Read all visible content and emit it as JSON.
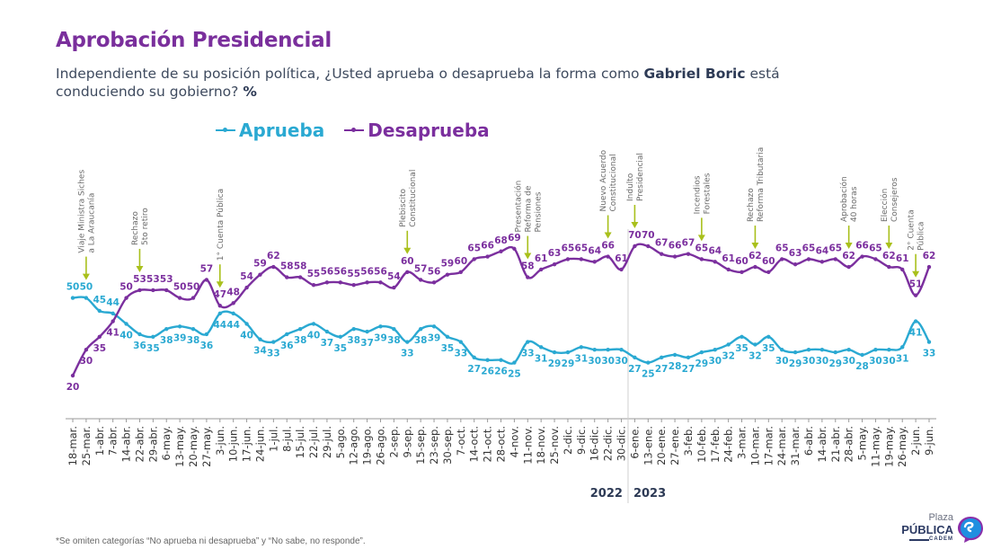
{
  "header": {
    "title": "Aprobación Presidencial",
    "subtitle_pre": "Independiente de su posición política, ¿Usted aprueba o desaprueba la forma como ",
    "subtitle_bold": "Gabriel Boric",
    "subtitle_post": " está conduciendo su gobierno? ",
    "subtitle_unit": "%"
  },
  "footnote": "*Se omiten categorías “No aprueba ni desaprueba” y “No sabe, no responde”.",
  "logo": {
    "line1": "Plaza",
    "line2": "PÚBLICA",
    "line3": "CADEM"
  },
  "colors": {
    "aprueba": "#2aa9d2",
    "desaprueba": "#7b2f9e",
    "annotation_arrow": "#a9c01c",
    "annotation_text": "#6b6b6b"
  },
  "chart_data": {
    "type": "line",
    "title": "Aprobación Presidencial",
    "xlabel": "",
    "ylabel": "%",
    "ylim": [
      15,
      75
    ],
    "grid": false,
    "legend_position": "top-left",
    "year_labels": [
      {
        "label": "2022",
        "before_index": 42
      },
      {
        "label": "2023",
        "from_index": 42
      }
    ],
    "x": [
      "18-mar.",
      "25-mar.",
      "1-abr.",
      "7-abr.",
      "14-abr.",
      "22-abr.",
      "29-abr.",
      "6-may.",
      "13-may.",
      "20-may.",
      "27-may.",
      "3-jun.",
      "10-jun.",
      "17-jun.",
      "24-jun.",
      "1-jul.",
      "8-jul.",
      "15-jul.",
      "22-jul.",
      "29-jul.",
      "5-ago.",
      "12-ago.",
      "19-ago.",
      "26-ago.",
      "2-sep.",
      "9-sep.",
      "15-sep.",
      "23-sep.",
      "30-sep.",
      "7-oct.",
      "14-oct.",
      "21-oct.",
      "28-oct.",
      "4-nov.",
      "11-nov.",
      "18-nov.",
      "25-nov.",
      "2-dic.",
      "9-dic.",
      "16-dic.",
      "22-dic.",
      "30-dic.",
      "6-ene.",
      "13-ene.",
      "20-ene.",
      "27-ene.",
      "3-feb.",
      "10-feb.",
      "17-feb.",
      "24-feb.",
      "3-mar.",
      "10-mar.",
      "17-mar.",
      "24-mar.",
      "31-mar.",
      "6-abr.",
      "14-abr.",
      "21-abr.",
      "28-abr.",
      "5-may.",
      "11-may.",
      "19-may.",
      "26-may.",
      "2-jun.",
      "9-jun."
    ],
    "series": [
      {
        "name": "Aprueba",
        "color": "#2aa9d2",
        "values": [
          50,
          50,
          45,
          44,
          40,
          36,
          35,
          38,
          39,
          38,
          36,
          44,
          44,
          40,
          34,
          33,
          36,
          38,
          40,
          37,
          35,
          38,
          37,
          39,
          38,
          33,
          38,
          39,
          35,
          33,
          27,
          26,
          26,
          25,
          33,
          31,
          29,
          29,
          31,
          30,
          30,
          30,
          27,
          25,
          27,
          28,
          27,
          29,
          30,
          32,
          35,
          32,
          35,
          30,
          29,
          30,
          30,
          29,
          30,
          28,
          30,
          30,
          31,
          41,
          33
        ]
      },
      {
        "name": "Desaprueba",
        "color": "#7b2f9e",
        "values": [
          20,
          30,
          35,
          41,
          50,
          53,
          53,
          53,
          50,
          50,
          57,
          47,
          48,
          54,
          59,
          62,
          58,
          58,
          55,
          56,
          56,
          55,
          56,
          56,
          54,
          60,
          57,
          56,
          59,
          60,
          65,
          66,
          68,
          69,
          58,
          61,
          63,
          65,
          65,
          64,
          66,
          61,
          70,
          70,
          67,
          66,
          67,
          65,
          64,
          61,
          60,
          62,
          60,
          65,
          63,
          65,
          64,
          65,
          62,
          66,
          65,
          62,
          61,
          51,
          62
        ]
      }
    ],
    "annotations": [
      {
        "index": 1,
        "lines": [
          "Viaje Ministra Siches",
          "a La Araucanía"
        ]
      },
      {
        "index": 5,
        "lines": [
          "Rechazo",
          "5to retiro"
        ]
      },
      {
        "index": 11,
        "lines": [
          "1° Cuenta Pública"
        ]
      },
      {
        "index": 25,
        "lines": [
          "Plebiscito",
          "Constitucional"
        ]
      },
      {
        "index": 34,
        "lines": [
          "Presentación",
          "Reforma de",
          "Pensiones"
        ]
      },
      {
        "index": 40,
        "lines": [
          "Nuevo Acuerdo",
          "Constitucional"
        ]
      },
      {
        "index": 42,
        "lines": [
          "Indulto",
          "Presidencial"
        ]
      },
      {
        "index": 47,
        "lines": [
          "Incendios",
          "Forestales"
        ]
      },
      {
        "index": 51,
        "lines": [
          "Rechazo",
          "Reforma Tributaria"
        ]
      },
      {
        "index": 58,
        "lines": [
          "Aprobación",
          "40 horas"
        ]
      },
      {
        "index": 61,
        "lines": [
          "Elección",
          "Consejeros"
        ]
      },
      {
        "index": 63,
        "lines": [
          "2° Cuenta",
          "Pública"
        ]
      }
    ]
  }
}
